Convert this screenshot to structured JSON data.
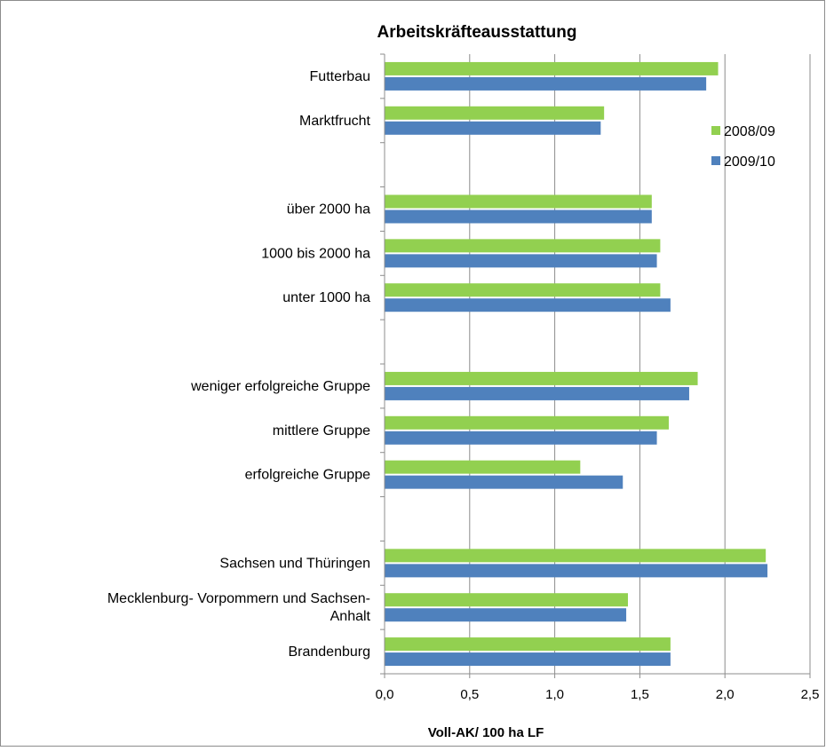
{
  "chart_data": {
    "type": "bar",
    "orientation": "horizontal",
    "title": "Arbeitskräfteausstattung",
    "xlabel": "Voll-AK/ 100 ha LF",
    "ylabel": "",
    "xlim": [
      0,
      2.5
    ],
    "x_ticks": [
      "0,0",
      "0,5",
      "1,0",
      "1,5",
      "2,0",
      "2,5"
    ],
    "grid": "vertical",
    "legend_position": "right",
    "categories": [
      "Futterbau",
      "Marktfrucht",
      "",
      "über 2000  ha",
      "1000 bis 2000  ha",
      "unter 1000  ha",
      "",
      "weniger erfolgreiche Gruppe",
      "mittlere Gruppe",
      "erfolgreiche Gruppe",
      "",
      "Sachsen und Thüringen",
      "Mecklenburg- Vorpommern und Sachsen-\nAnhalt",
      "Brandenburg"
    ],
    "series": [
      {
        "name": "2008/09",
        "color": "#92d050",
        "values": [
          1.96,
          1.29,
          null,
          1.57,
          1.62,
          1.62,
          null,
          1.84,
          1.67,
          1.15,
          null,
          2.24,
          1.43,
          1.68
        ]
      },
      {
        "name": "2009/10",
        "color": "#4f81bd",
        "values": [
          1.89,
          1.27,
          null,
          1.57,
          1.6,
          1.68,
          null,
          1.79,
          1.6,
          1.4,
          null,
          2.25,
          1.42,
          1.68
        ]
      }
    ]
  }
}
